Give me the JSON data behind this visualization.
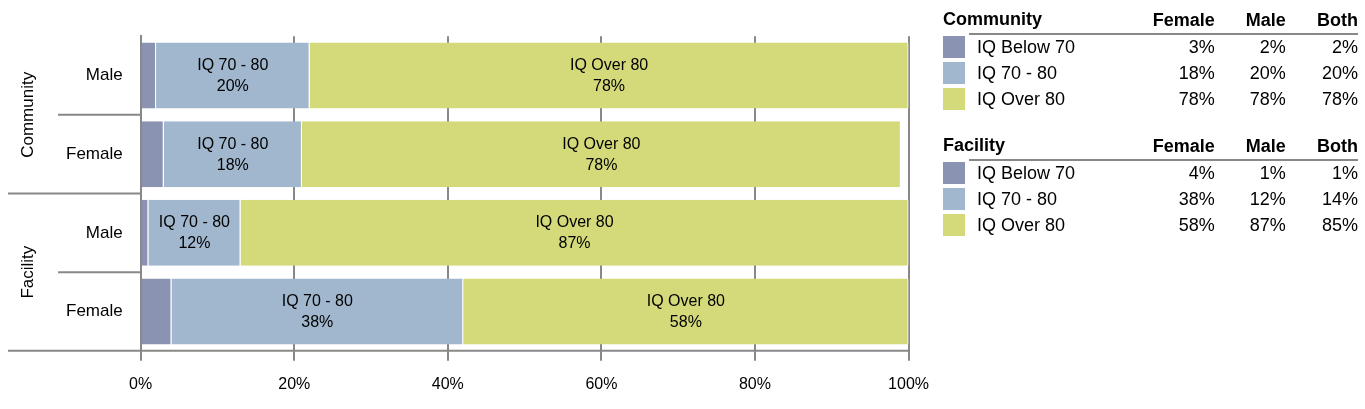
{
  "chart_data": [
    {
      "type": "bar",
      "orientation": "horizontal",
      "stacked": true,
      "legend": false,
      "grid": "x",
      "categories": [
        "Male",
        "Female",
        "Male",
        "Female"
      ],
      "annotations": [
        "Community",
        "Facility"
      ],
      "xlim": [
        0,
        100
      ],
      "xticks": [
        {
          "value": 0,
          "label": "0%"
        },
        {
          "value": 20,
          "label": "20%"
        },
        {
          "value": 40,
          "label": "40%"
        },
        {
          "value": 60,
          "label": "60%"
        },
        {
          "value": 80,
          "label": "80%"
        },
        {
          "value": 100,
          "label": "100%"
        }
      ],
      "series": [
        {
          "color": "#8b93b3",
          "values": [
            2,
            3,
            1,
            4
          ]
        },
        {
          "name": "IQ 70 - 80",
          "color": "#a1b7cd",
          "values": [
            20,
            18,
            12,
            38
          ],
          "value_labels": [
            "20%",
            "18%",
            "12%",
            "38%"
          ]
        },
        {
          "name": "IQ Over 80",
          "color": "#d4da7a",
          "values": [
            78,
            78,
            87,
            58
          ],
          "value_labels": [
            "78%",
            "78%",
            "87%",
            "58%"
          ]
        }
      ]
    },
    {
      "type": "other",
      "title": "Community",
      "categories": [
        "Female",
        "Male",
        "Both"
      ],
      "series": [
        {
          "name": "IQ Below 70",
          "color": "#8b93b3",
          "values": [
            3,
            2,
            2
          ],
          "value_labels": [
            "3%",
            "2%",
            "2%"
          ]
        },
        {
          "name": "IQ 70 - 80",
          "color": "#a1b7cd",
          "values": [
            18,
            20,
            20
          ],
          "value_labels": [
            "18%",
            "20%",
            "20%"
          ]
        },
        {
          "name": "IQ Over 80",
          "color": "#d4da7a",
          "values": [
            78,
            78,
            78
          ],
          "value_labels": [
            "78%",
            "78%",
            "78%"
          ]
        }
      ]
    },
    {
      "type": "other",
      "title": "Facility",
      "categories": [
        "Female",
        "Male",
        "Both"
      ],
      "series": [
        {
          "name": "IQ Below 70",
          "color": "#8b93b3",
          "values": [
            4,
            1,
            1
          ],
          "value_labels": [
            "4%",
            "1%",
            "1%"
          ]
        },
        {
          "name": "IQ 70 - 80",
          "color": "#a1b7cd",
          "values": [
            38,
            12,
            14
          ],
          "value_labels": [
            "38%",
            "12%",
            "14%"
          ]
        },
        {
          "name": "IQ Over 80",
          "color": "#d4da7a",
          "values": [
            58,
            87,
            85
          ],
          "value_labels": [
            "58%",
            "87%",
            "85%"
          ]
        }
      ]
    }
  ]
}
